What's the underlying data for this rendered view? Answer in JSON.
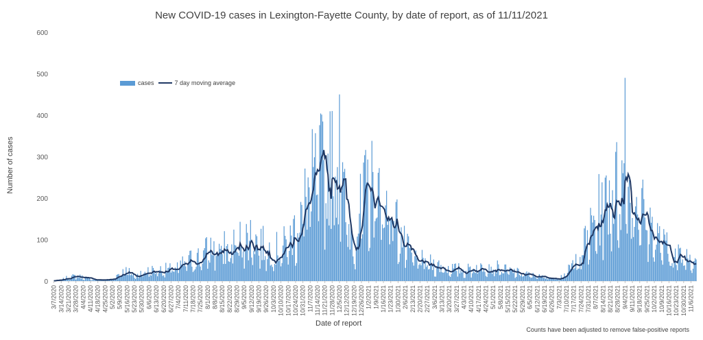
{
  "chart_data": {
    "type": "bar",
    "title": "New COVID-19 cases in Lexington-Fayette County, by date of report, as of 11/11/2021",
    "xlabel": "Date of report",
    "ylabel": "Number of cases",
    "ylim": [
      0,
      600
    ],
    "yticks": [
      0,
      100,
      200,
      300,
      400,
      500,
      600
    ],
    "footnote": "Counts have been adjusted to remove false-positive reports",
    "legend": {
      "placement": "top-left",
      "bar_label": "cases",
      "line_label": "7 day moving average"
    },
    "colors": {
      "bars": "#5b9bd5",
      "line": "#1f3864"
    },
    "date_range": [
      "2020-03-07",
      "2021-11-11"
    ],
    "xtick_labels": [
      "3/7/2020",
      "3/14/2020",
      "3/21/2020",
      "3/28/2020",
      "4/4/2020",
      "4/11/2020",
      "4/18/2020",
      "4/25/2020",
      "5/2/2020",
      "5/9/2020",
      "5/16/2020",
      "5/23/2020",
      "5/30/2020",
      "6/6/2020",
      "6/13/2020",
      "6/20/2020",
      "6/27/2020",
      "7/4/2020",
      "7/11/2020",
      "7/18/2020",
      "7/25/2020",
      "8/1/2020",
      "8/8/2020",
      "8/15/2020",
      "8/22/2020",
      "8/29/2020",
      "9/5/2020",
      "9/12/2020",
      "9/19/2020",
      "9/26/2020",
      "10/3/2020",
      "10/10/2020",
      "10/17/2020",
      "10/24/2020",
      "10/31/2020",
      "11/7/2020",
      "11/14/2020",
      "11/21/2020",
      "11/28/2020",
      "12/5/2020",
      "12/12/2020",
      "12/19/2020",
      "12/26/2020",
      "1/2/2021",
      "1/9/2021",
      "1/16/2021",
      "1/23/2021",
      "1/30/2021",
      "2/6/2021",
      "2/13/2021",
      "2/20/2021",
      "2/27/2021",
      "3/6/2021",
      "3/13/2021",
      "3/20/2021",
      "3/27/2021",
      "4/3/2021",
      "4/10/2021",
      "4/17/2021",
      "4/24/2021",
      "5/1/2021",
      "5/8/2021",
      "5/15/2021",
      "5/22/2021",
      "5/29/2021",
      "6/5/2021",
      "6/12/2021",
      "6/19/2021",
      "6/26/2021",
      "7/3/2021",
      "7/10/2021",
      "7/17/2021",
      "7/24/2021",
      "7/31/2021",
      "8/7/2021",
      "8/14/2021",
      "8/21/2021",
      "8/28/2021",
      "9/4/2021",
      "9/11/2021",
      "9/18/2021",
      "9/25/2021",
      "10/2/2021",
      "10/9/2021",
      "10/16/2021",
      "10/23/2021",
      "10/30/2021",
      "11/6/2021"
    ],
    "series": [
      {
        "name": "cases",
        "type": "bar",
        "weekly_average_per_day": [
          1,
          3,
          10,
          12,
          10,
          5,
          3,
          3,
          5,
          20,
          25,
          12,
          20,
          25,
          27,
          28,
          30,
          35,
          45,
          55,
          60,
          75,
          80,
          80,
          75,
          95,
          105,
          110,
          95,
          80,
          75,
          80,
          95,
          130,
          180,
          230,
          260,
          280,
          270,
          270,
          150,
          100,
          180,
          240,
          215,
          195,
          190,
          130,
          80,
          60,
          50,
          45,
          40,
          35,
          30,
          30,
          25,
          30,
          35,
          40,
          35,
          30,
          25,
          22,
          18,
          15,
          12,
          10,
          8,
          8,
          20,
          45,
          70,
          110,
          150,
          190,
          220,
          230,
          240,
          220,
          190,
          150,
          120,
          90,
          75,
          60,
          60,
          60
        ]
      },
      {
        "name": "7 day moving average",
        "type": "line",
        "weekly_values": [
          1,
          3,
          10,
          12,
          10,
          5,
          3,
          3,
          5,
          20,
          25,
          12,
          20,
          25,
          27,
          28,
          30,
          35,
          45,
          55,
          60,
          75,
          80,
          80,
          75,
          95,
          105,
          110,
          95,
          80,
          75,
          80,
          95,
          130,
          180,
          230,
          260,
          280,
          270,
          270,
          150,
          100,
          180,
          240,
          215,
          195,
          190,
          130,
          80,
          60,
          50,
          45,
          40,
          35,
          30,
          30,
          25,
          30,
          35,
          40,
          35,
          30,
          25,
          22,
          18,
          15,
          12,
          10,
          8,
          8,
          20,
          45,
          70,
          110,
          150,
          190,
          220,
          230,
          240,
          220,
          190,
          150,
          120,
          90,
          75,
          60,
          60,
          60
        ]
      }
    ],
    "notable_peaks": [
      {
        "x": "12/5/2020",
        "cases": 450
      },
      {
        "x": "11/28/2020",
        "cases": 410
      },
      {
        "x": "9/4/2021",
        "cases": 490
      }
    ]
  }
}
